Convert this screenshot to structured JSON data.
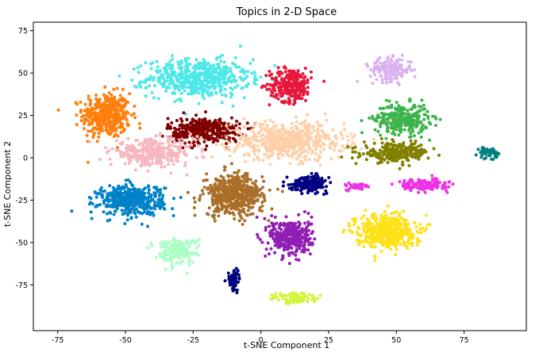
{
  "chart_data": {
    "type": "scatter",
    "title": "Topics in 2-D Space",
    "xlabel": "t-SNE Component 1",
    "ylabel": "t-SNE Component 2",
    "xlim": [
      -84,
      98
    ],
    "ylim": [
      -102,
      80
    ],
    "xticks": [
      -75,
      -50,
      -25,
      0,
      25,
      50,
      75
    ],
    "yticks": [
      -75,
      -50,
      -25,
      0,
      25,
      50,
      75
    ],
    "grid": false,
    "legend": "none",
    "clusters": [
      {
        "color": "#ff7f0e",
        "center": [
          -57,
          25
        ],
        "spread": [
          8,
          12
        ],
        "count": 420
      },
      {
        "color": "#4ee8e8",
        "center": [
          -23,
          47
        ],
        "spread": [
          17,
          10
        ],
        "count": 560
      },
      {
        "color": "#e8173c",
        "center": [
          11,
          43
        ],
        "spread": [
          7,
          9
        ],
        "count": 280
      },
      {
        "color": "#dab2f0",
        "center": [
          48,
          52
        ],
        "spread": [
          7,
          6
        ],
        "count": 180
      },
      {
        "color": "#3cb44b",
        "center": [
          52,
          23
        ],
        "spread": [
          9,
          8
        ],
        "count": 300
      },
      {
        "color": "#800000",
        "center": [
          -21,
          16
        ],
        "spread": [
          12,
          7
        ],
        "count": 380
      },
      {
        "color": "#ffcfa8",
        "center": [
          10,
          10
        ],
        "spread": [
          19,
          10
        ],
        "count": 560
      },
      {
        "color": "#f7b7c0",
        "center": [
          -40,
          3
        ],
        "spread": [
          14,
          7
        ],
        "count": 320
      },
      {
        "color": "#808000",
        "center": [
          50,
          3
        ],
        "spread": [
          11,
          5
        ],
        "count": 260
      },
      {
        "color": "#008080",
        "center": [
          84,
          3
        ],
        "spread": [
          3,
          3
        ],
        "count": 50
      },
      {
        "color": "#0082c8",
        "center": [
          -48,
          -25
        ],
        "spread": [
          11,
          8
        ],
        "count": 460
      },
      {
        "color": "#aa6e28",
        "center": [
          -10,
          -22
        ],
        "spread": [
          10,
          11
        ],
        "count": 480
      },
      {
        "color": "#000080",
        "center": [
          18,
          -15
        ],
        "spread": [
          6,
          4
        ],
        "count": 190
      },
      {
        "color": "#f032e6",
        "center": [
          60,
          -16
        ],
        "spread": [
          8,
          3
        ],
        "count": 170
      },
      {
        "color": "#f032e6",
        "center": [
          36,
          -17
        ],
        "spread": [
          4,
          2
        ],
        "count": 40
      },
      {
        "color": "#911eb4",
        "center": [
          11,
          -47
        ],
        "spread": [
          7,
          10
        ],
        "count": 360
      },
      {
        "color": "#ffe119",
        "center": [
          46,
          -43
        ],
        "spread": [
          10,
          9
        ],
        "count": 460
      },
      {
        "color": "#aaffc3",
        "center": [
          -31,
          -55
        ],
        "spread": [
          7,
          7
        ],
        "count": 180
      },
      {
        "color": "#000080",
        "center": [
          -10,
          -72
        ],
        "spread": [
          2,
          6
        ],
        "count": 60
      },
      {
        "color": "#d2f53c",
        "center": [
          13,
          -83
        ],
        "spread": [
          8,
          3
        ],
        "count": 80
      }
    ]
  }
}
